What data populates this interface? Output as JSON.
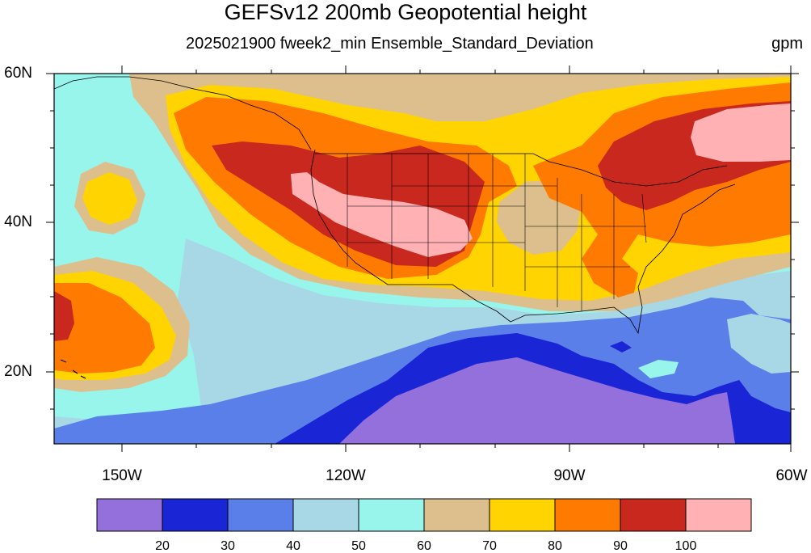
{
  "title": "GEFSv12 200mb Geopotential height",
  "subtitle": "2025021900 fweek2_min Ensemble_Standard_Deviation",
  "units": "gpm",
  "map": {
    "projection": "lat-lon",
    "lat_range": [
      10,
      60
    ],
    "lon_range": [
      -160,
      -60
    ],
    "lat_ticks": [
      "60N",
      "40N",
      "20N"
    ],
    "lon_ticks": [
      "150W",
      "120W",
      "90W",
      "60W"
    ]
  },
  "colorbar": {
    "levels": [
      "20",
      "30",
      "40",
      "50",
      "60",
      "70",
      "80",
      "90",
      "100"
    ],
    "colors": [
      "#9370db",
      "#1a25d6",
      "#5b7fe8",
      "#a8d8e6",
      "#98f5ec",
      "#dcbf8c",
      "#ffd400",
      "#ff7a00",
      "#c8281e",
      "#ffb1b4"
    ]
  },
  "chart_data": {
    "type": "heatmap",
    "title": "GEFSv12 200mb Geopotential height",
    "subtitle": "2025021900 fweek2_min Ensemble_Standard_Deviation",
    "units": "gpm",
    "xlim": [
      -160,
      -60
    ],
    "ylim": [
      10,
      60
    ],
    "contour_levels": [
      20,
      30,
      40,
      50,
      60,
      70,
      80,
      90,
      100
    ]
  }
}
